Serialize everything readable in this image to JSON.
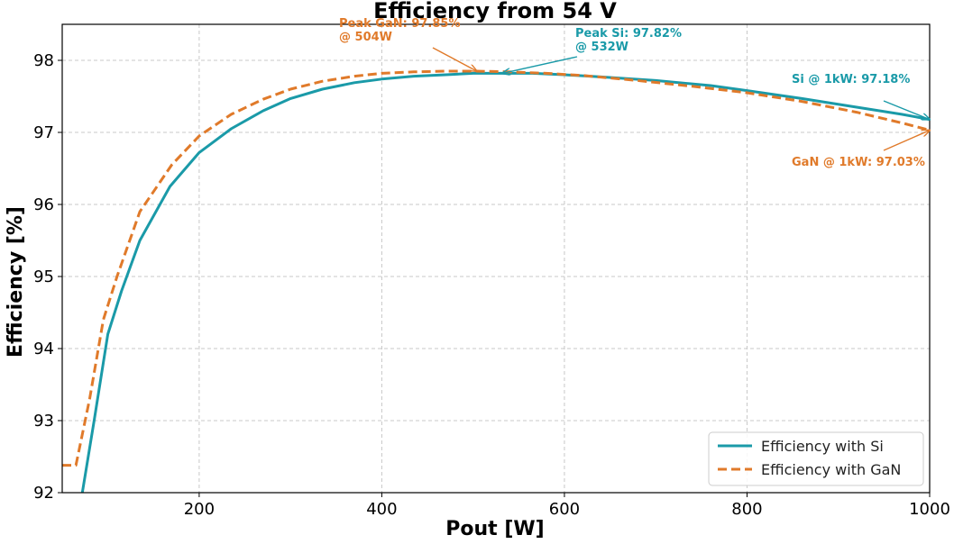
{
  "chart_data": {
    "type": "line",
    "title": "Efficiency from 54 V",
    "xlabel": "Pout [W]",
    "ylabel": "Efficiency [%]",
    "xlim": [
      50,
      1000
    ],
    "ylim": [
      92,
      98.5
    ],
    "xticks": [
      200,
      400,
      600,
      800,
      1000
    ],
    "yticks": [
      92,
      93,
      94,
      95,
      96,
      97,
      98
    ],
    "grid": true,
    "legend_position": "bottom-right",
    "series": [
      {
        "name": "Efficiency with Si",
        "color": "#1a9aa8",
        "style": "solid",
        "x": [
          72,
          85,
          100,
          115,
          135,
          168,
          200,
          235,
          270,
          300,
          335,
          370,
          400,
          435,
          470,
          500,
          532,
          565,
          600,
          640,
          700,
          760,
          800,
          860,
          920,
          970,
          1000
        ],
        "y": [
          92.0,
          93.0,
          94.2,
          94.8,
          95.5,
          96.25,
          96.72,
          97.05,
          97.3,
          97.47,
          97.6,
          97.69,
          97.74,
          97.78,
          97.8,
          97.82,
          97.82,
          97.82,
          97.8,
          97.77,
          97.72,
          97.65,
          97.58,
          97.47,
          97.35,
          97.25,
          97.18
        ]
      },
      {
        "name": "Efficiency with GaN",
        "color": "#e07a2a",
        "style": "dashed",
        "x": [
          50,
          65,
          80,
          95,
          110,
          135,
          170,
          200,
          235,
          270,
          300,
          335,
          370,
          400,
          435,
          470,
          504,
          540,
          580,
          620,
          680,
          740,
          800,
          860,
          920,
          970,
          1000
        ],
        "y": [
          92.38,
          92.38,
          93.3,
          94.4,
          95.0,
          95.9,
          96.55,
          96.95,
          97.25,
          97.46,
          97.6,
          97.71,
          97.78,
          97.82,
          97.84,
          97.85,
          97.85,
          97.84,
          97.82,
          97.79,
          97.72,
          97.64,
          97.55,
          97.43,
          97.28,
          97.13,
          97.03
        ]
      }
    ],
    "annotations": [
      {
        "text_lines": [
          "Peak GaN: 97.85%",
          "@ 504W"
        ],
        "color": "#e07a2a",
        "point": [
          504,
          97.85
        ]
      },
      {
        "text_lines": [
          "Peak Si: 97.82%",
          "@ 532W"
        ],
        "color": "#1a9aa8",
        "point": [
          532,
          97.82
        ]
      },
      {
        "text_lines": [
          "Si @ 1kW: 97.18%"
        ],
        "color": "#1a9aa8",
        "point": [
          1000,
          97.18
        ]
      },
      {
        "text_lines": [
          "GaN @ 1kW: 97.03%"
        ],
        "color": "#e07a2a",
        "point": [
          1000,
          97.03
        ]
      }
    ]
  }
}
